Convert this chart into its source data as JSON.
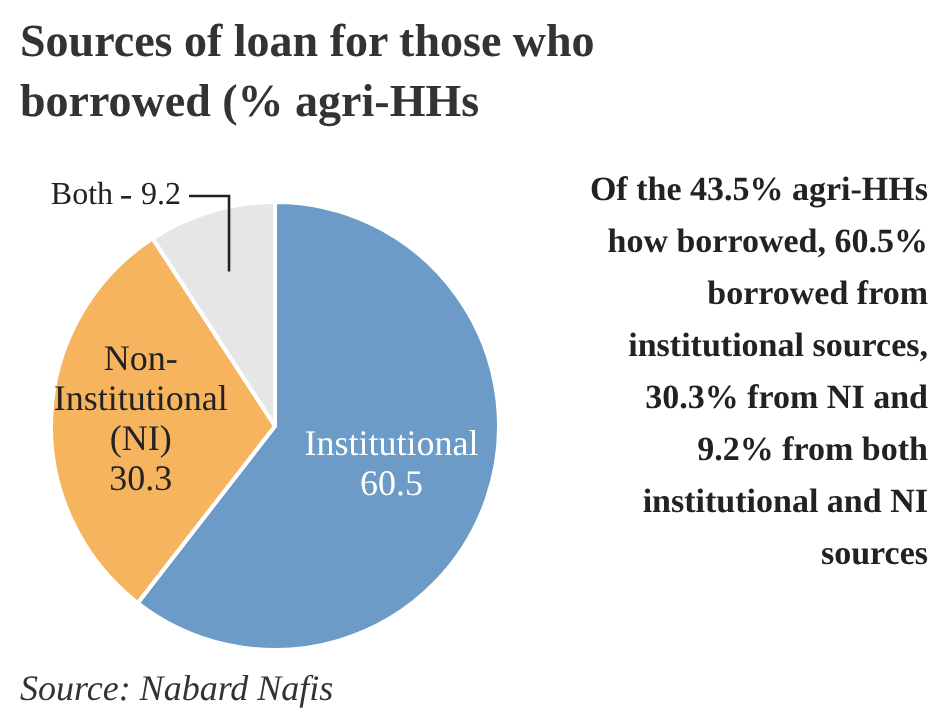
{
  "chart_data": {
    "type": "pie",
    "title": "Sources of loan for those who borrowed (% agri-HHs",
    "categories": [
      "Institutional",
      "Non-Institutional (NI)",
      "Both"
    ],
    "values": [
      60.5,
      30.3,
      9.2
    ],
    "colors": [
      "#6b9bc6",
      "#f6b45e",
      "#e6e6e6"
    ],
    "data_labels": true,
    "legend": false,
    "annotations": [
      "Of the 43.5% agri-HHs how borrowed, 60.5% borrowed from institutional sources, 30.3% from NI and 9.2% from both institutional and NI sources",
      "Source: Nabard Nafis"
    ]
  }
}
